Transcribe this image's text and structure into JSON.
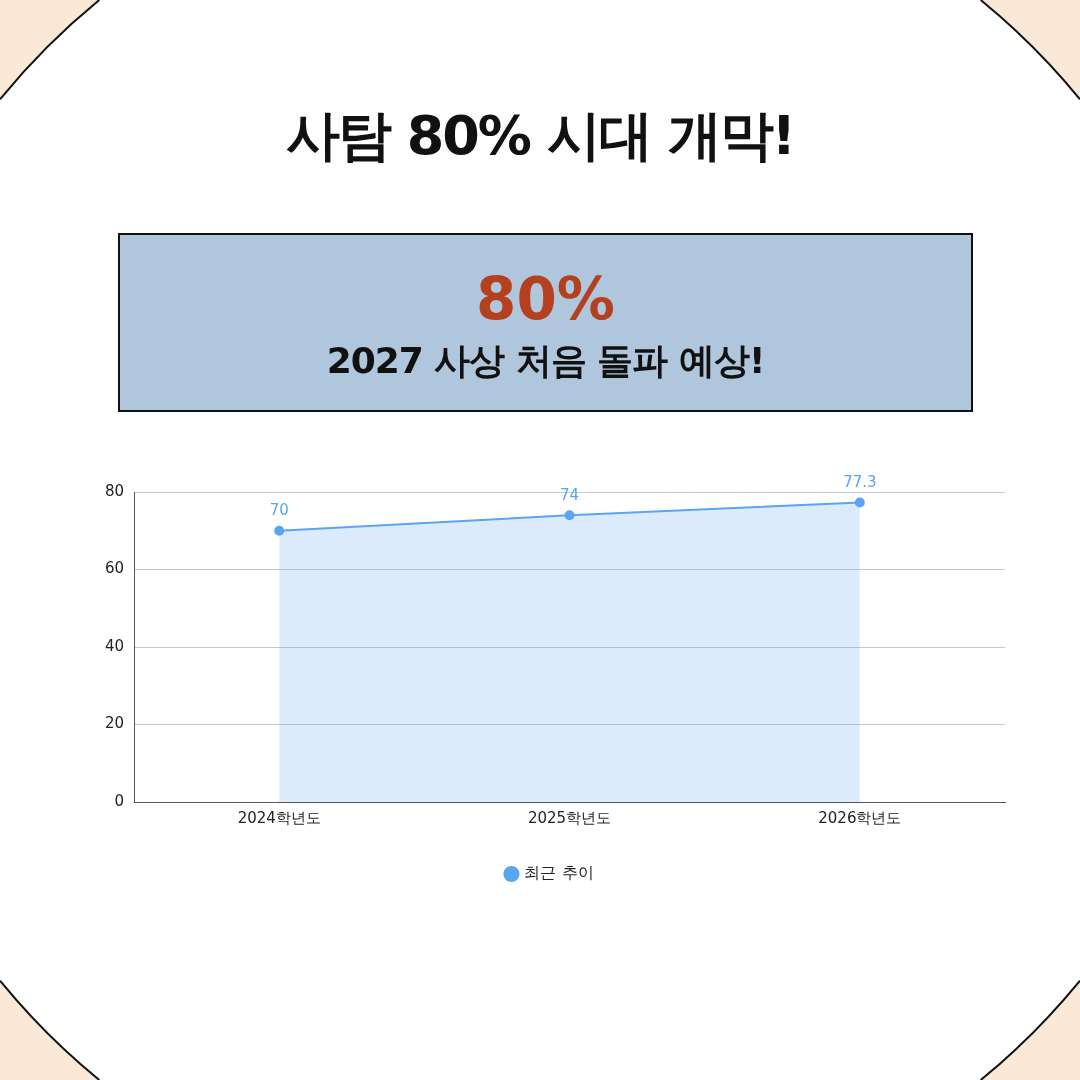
{
  "chart_data": {
    "type": "area",
    "title": "사탐 80% 시대 개막!",
    "annotations": [
      "80%",
      "2027 사상 처음 돌파 예상!"
    ],
    "categories": [
      "2024학년도",
      "2025학년도",
      "2026학년도"
    ],
    "series": [
      {
        "name": "최근 추이",
        "color": "#5aa5f0",
        "values": [
          70,
          74,
          77.3
        ]
      }
    ],
    "ylim": [
      0,
      80
    ],
    "yticks": [
      0,
      20,
      40,
      60,
      80
    ],
    "grid": "y",
    "legend": "bottom",
    "marker": "circle",
    "data_labels": true
  }
}
